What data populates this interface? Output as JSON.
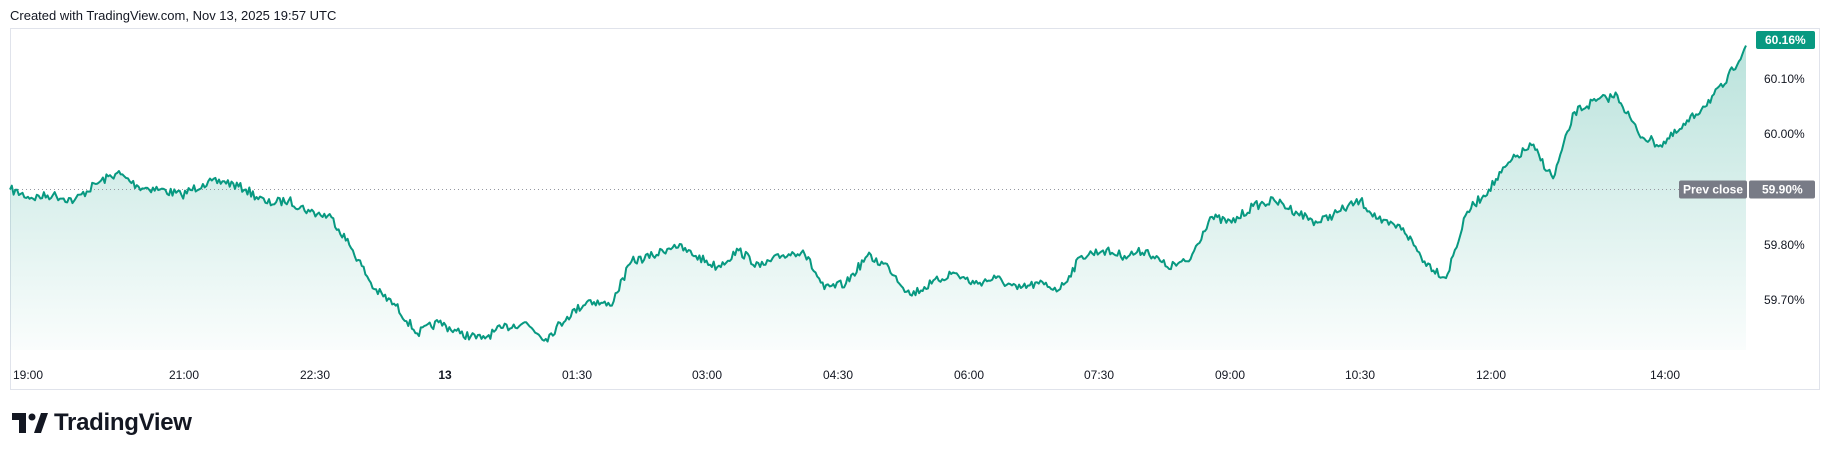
{
  "header": {
    "text": "Created with TradingView.com, Nov 13, 2025 19:57 UTC"
  },
  "brand": {
    "name": "TradingView"
  },
  "colors": {
    "line": "#089981",
    "fill": "#089981",
    "prev_close_badge": "#787b86",
    "last_badge": "#089981"
  },
  "chart_data": {
    "type": "area",
    "x_tick_labels": [
      "19:00",
      "21:00",
      "22:30",
      "13",
      "01:30",
      "03:00",
      "04:30",
      "06:00",
      "07:30",
      "09:00",
      "10:30",
      "12:00",
      "14:00"
    ],
    "y_tick_labels": [
      "60.10%",
      "60.00%",
      "59.80%",
      "59.70%"
    ],
    "y_ticks": [
      60.1,
      60.0,
      59.8,
      59.7
    ],
    "ylim": [
      59.61,
      60.19
    ],
    "prev_close": {
      "label": "Prev close",
      "value": 59.9,
      "value_label": "59.90%"
    },
    "last": {
      "value": 60.16,
      "value_label": "60.16%"
    },
    "series": [
      {
        "x": [
          "18:45",
          "19:00",
          "19:15",
          "19:30",
          "19:45",
          "20:00",
          "20:15",
          "20:30",
          "20:45",
          "21:00",
          "21:15",
          "21:30",
          "21:45",
          "22:00",
          "22:15",
          "22:30",
          "22:45",
          "23:00",
          "23:15",
          "23:30",
          "23:45",
          "00:00",
          "00:15",
          "00:30",
          "00:45",
          "01:00",
          "01:15",
          "01:30",
          "01:45",
          "02:00",
          "02:15",
          "02:30",
          "02:45",
          "03:00",
          "03:15",
          "03:30",
          "03:45",
          "04:00",
          "04:15",
          "04:30",
          "04:45",
          "05:00",
          "05:15",
          "05:30",
          "05:45",
          "06:00",
          "06:15",
          "06:30",
          "06:45",
          "07:00",
          "07:15",
          "07:30",
          "07:45",
          "08:00",
          "08:15",
          "08:30",
          "08:45",
          "09:00",
          "09:15",
          "09:30",
          "09:45",
          "10:00",
          "10:15",
          "10:30",
          "10:45",
          "11:00",
          "11:15",
          "11:30",
          "11:45",
          "12:00",
          "12:15",
          "12:30",
          "12:45",
          "13:00",
          "13:15",
          "13:30",
          "13:45",
          "14:00",
          "14:15",
          "14:30",
          "14:45",
          "15:00"
        ],
        "values": [
          59.9,
          59.885,
          59.89,
          59.88,
          59.91,
          59.93,
          59.905,
          59.9,
          59.89,
          59.91,
          59.915,
          59.9,
          59.875,
          59.88,
          59.86,
          59.85,
          59.79,
          59.72,
          59.69,
          59.64,
          59.66,
          59.64,
          59.63,
          59.65,
          59.66,
          59.63,
          59.67,
          59.7,
          59.69,
          59.77,
          59.78,
          59.8,
          59.78,
          59.76,
          59.79,
          59.76,
          59.78,
          59.79,
          59.72,
          59.73,
          59.78,
          59.76,
          59.71,
          59.73,
          59.75,
          59.73,
          59.74,
          59.72,
          59.73,
          59.72,
          59.78,
          59.79,
          59.78,
          59.79,
          59.76,
          59.77,
          59.85,
          59.84,
          59.87,
          59.88,
          59.86,
          59.84,
          59.86,
          59.88,
          59.84,
          59.83,
          59.77,
          59.74,
          59.86,
          59.9,
          59.95,
          59.98,
          59.92,
          60.04,
          60.06,
          60.07,
          60.0,
          59.98,
          60.01,
          60.05,
          60.09,
          60.16
        ]
      }
    ]
  }
}
